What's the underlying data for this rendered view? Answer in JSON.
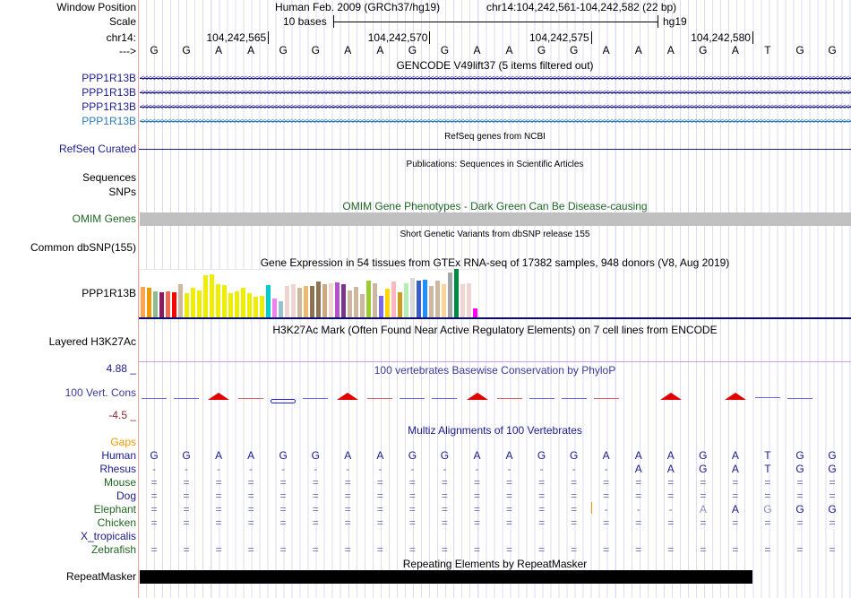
{
  "header": {
    "window_position_label": "Window Position",
    "assembly": "Human Feb. 2009 (GRCh37/hg19)",
    "position": "chr14:104,242,561-104,242,582 (22 bp)",
    "scale_label": "Scale",
    "scale_text": "10 bases",
    "scale_db": "hg19",
    "chrom_label": "chr14:",
    "strand_label": "--->",
    "ticks": [
      "104,242,565",
      "104,242,570",
      "104,242,575",
      "104,242,580"
    ]
  },
  "bases": [
    "G",
    "G",
    "A",
    "A",
    "G",
    "G",
    "A",
    "A",
    "G",
    "G",
    "A",
    "A",
    "G",
    "G",
    "A",
    "A",
    "A",
    "G",
    "A",
    "T",
    "G",
    "G"
  ],
  "tracks": {
    "gencode": {
      "title": "GENCODE V49lift37 (5 items filtered out)",
      "items": [
        "PPP1R13B",
        "PPP1R13B",
        "PPP1R13B",
        "PPP1R13B"
      ]
    },
    "refseq": {
      "title": "RefSeq genes from NCBI",
      "label": "RefSeq Curated"
    },
    "pubs": {
      "title": "Publications: Sequences in Scientific Articles",
      "label1": "Sequences",
      "label2": "SNPs"
    },
    "omim": {
      "title": "OMIM Gene Phenotypes - Dark Green Can Be Disease-causing",
      "label": "OMIM Genes"
    },
    "dbsnp": {
      "title": "Short Genetic Variants from dbSNP release 155",
      "label": "Common dbSNP(155)"
    },
    "gtex": {
      "title": "Gene Expression in 54 tissues from GTEx RNA-seq of 17382 samples, 948 donors (V8, Aug 2019)",
      "label": "PPP1R13B"
    },
    "h3k27ac": {
      "title": "H3K27Ac Mark (Often Found Near Active Regulatory Elements) on 7 cell lines from ENCODE",
      "label": "Layered H3K27Ac"
    },
    "phylop": {
      "title": "100 vertebrates Basewise Conservation by PhyloP",
      "label": "100 Vert. Cons",
      "max": "4.88 _",
      "min": "-4.5 _"
    },
    "multiz": {
      "title": "Multiz Alignments of 100 Vertebrates",
      "gaps_label": "Gaps",
      "species": [
        {
          "name": "Human",
          "color": "#1a1a8c",
          "seq": "GGAAGGAAGGAAGGAAAGATGG"
        },
        {
          "name": "Rhesus",
          "color": "#1a1a8c",
          "seq": "---------------AAGATGG"
        },
        {
          "name": "Mouse",
          "color": "#226622",
          "seq": "======================"
        },
        {
          "name": "Dog",
          "color": "#1a1a8c",
          "seq": "======================"
        },
        {
          "name": "Elephant",
          "color": "#226622",
          "seq": "==============---aAgGG"
        },
        {
          "name": "Chicken",
          "color": "#226622",
          "seq": "======================"
        },
        {
          "name": "X_tropicalis",
          "color": "#1a1a8c",
          "seq": "                      "
        },
        {
          "name": "Zebrafish",
          "color": "#226622",
          "seq": "======================"
        }
      ]
    },
    "repeatmasker": {
      "title": "Repeating Elements by RepeatMasker",
      "label": "RepeatMasker"
    }
  },
  "gtex_bars": {
    "values": [
      0.63,
      0.61,
      0.54,
      0.52,
      0.54,
      0.52,
      0.69,
      0.5,
      0.61,
      0.56,
      0.87,
      0.89,
      0.69,
      0.67,
      0.5,
      0.54,
      0.61,
      0.5,
      0.43,
      0.44,
      0.67,
      0.39,
      0.33,
      0.65,
      0.69,
      0.61,
      0.65,
      0.65,
      0.74,
      0.69,
      0.7,
      0.72,
      0.69,
      0.56,
      0.63,
      0.48,
      0.76,
      0.7,
      0.44,
      0.59,
      0.74,
      0.52,
      0.7,
      0.81,
      0.76,
      0.78,
      0.65,
      0.76,
      0.69,
      0.93,
      1.0,
      0.69,
      0.7,
      0.19
    ],
    "colors": [
      "#FFA54F",
      "#EE9A00",
      "#8FBC8F",
      "#8B1C62",
      "#EE6A50",
      "#FF0000",
      "#CDB79E",
      "#EEEE00",
      "#EEEE00",
      "#EEEE00",
      "#EEEE00",
      "#EEEE00",
      "#EEEE00",
      "#EEEE00",
      "#EEEE00",
      "#EEEE00",
      "#EEEE00",
      "#EEEE00",
      "#EEEE00",
      "#EEEE00",
      "#00CED1",
      "#EE82EE",
      "#9AC0CD",
      "#EED5D2",
      "#EED5D2",
      "#CDB79E",
      "#EEB86E",
      "#8B7355",
      "#8B7355",
      "#CDAA7D",
      "#EED5D2",
      "#B452CD",
      "#7A378B",
      "#CDB79E",
      "#CDB79E",
      "#CDB79E",
      "#9ACD32",
      "#CDB79E",
      "#7B68EE",
      "#FFD700",
      "#FFB6C1",
      "#CD9B1D",
      "#B4EEB4",
      "#D9D9D9",
      "#3A5FCD",
      "#1E90FF",
      "#CDB79E",
      "#CDB79E",
      "#FFD39B",
      "#A6A6A6",
      "#008B45",
      "#EED5D2",
      "#EED5D2",
      "#FF00FF"
    ]
  },
  "phylop_marks": [
    "b",
    "b",
    "A",
    "r",
    "g",
    "b",
    "A",
    "r",
    "b",
    "b",
    "A",
    "r",
    "b",
    "b",
    "r",
    "",
    "A",
    "",
    "A",
    "l",
    "b",
    ""
  ]
}
